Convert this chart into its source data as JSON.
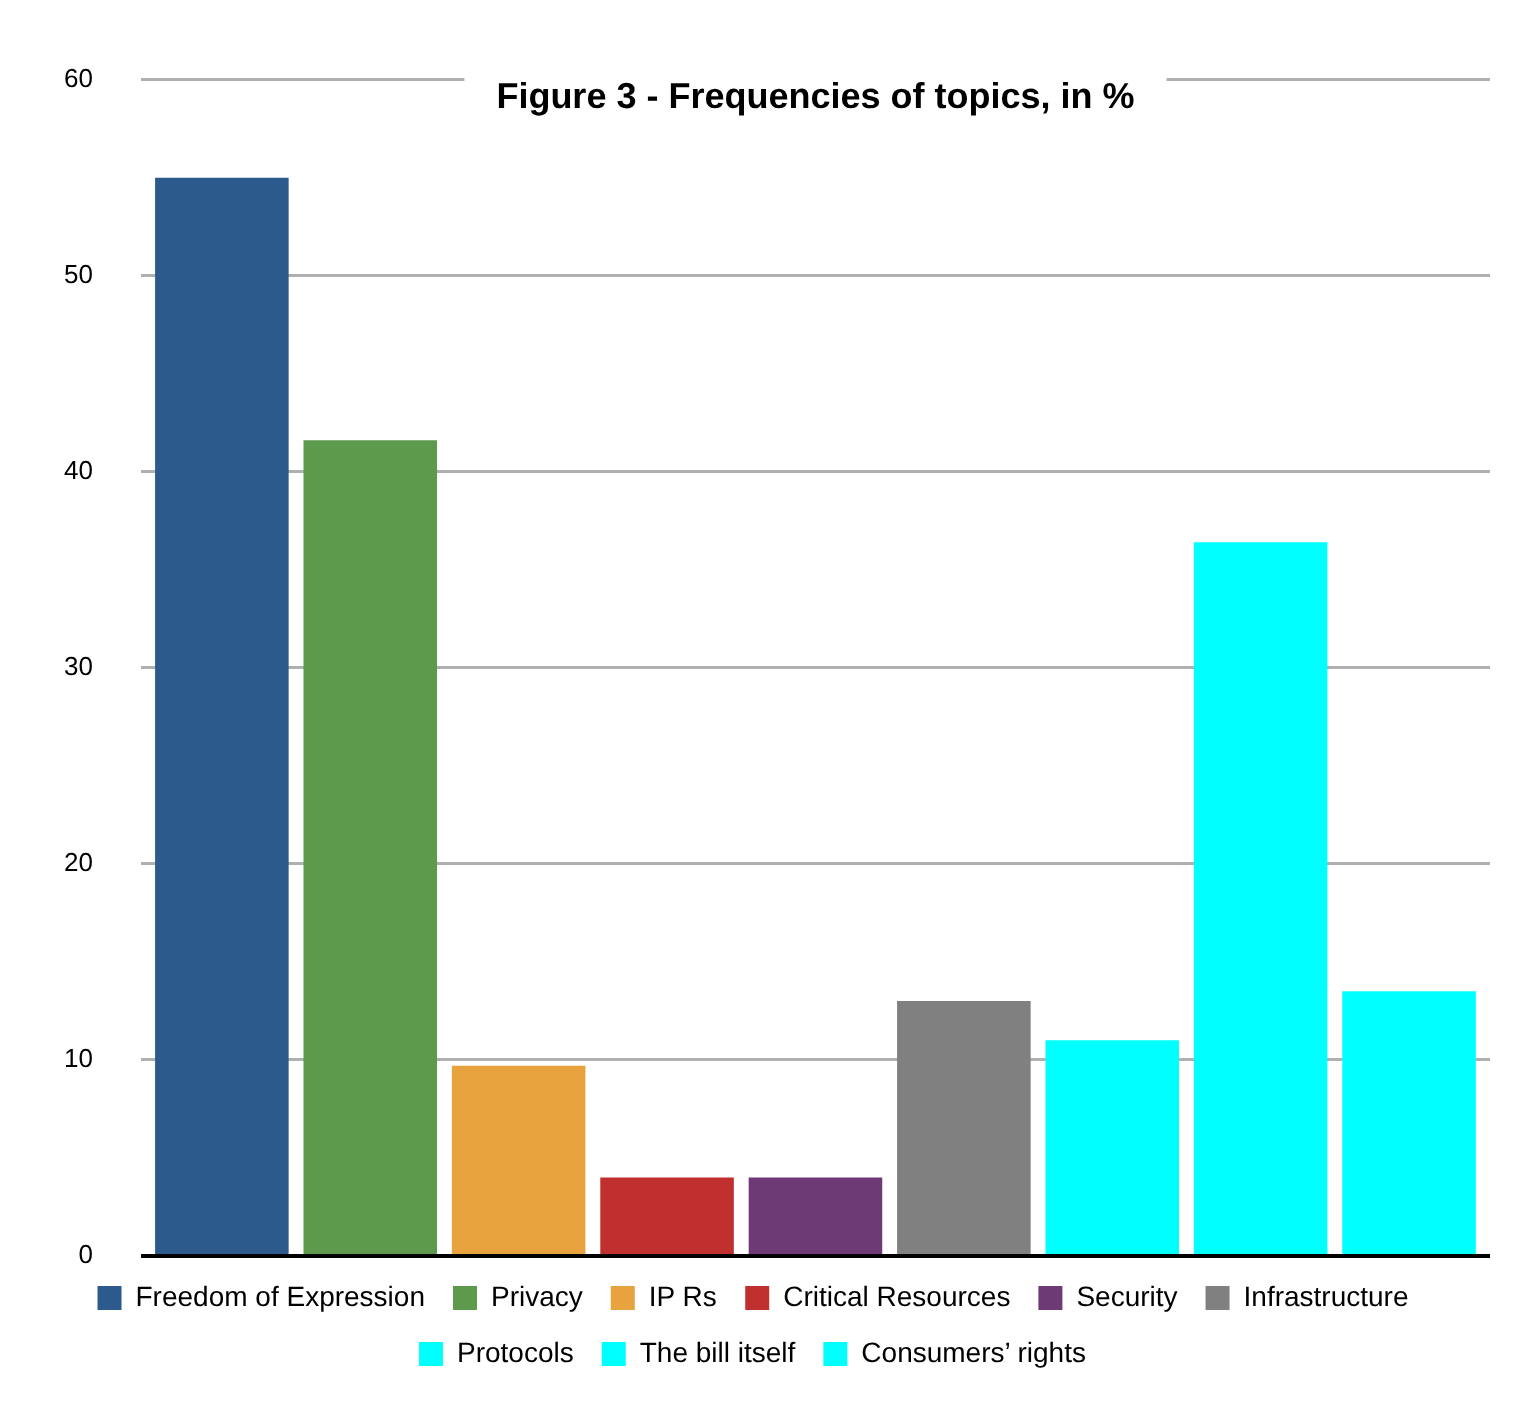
{
  "chart_data": {
    "type": "bar",
    "title": "Figure 3 - Frequencies of topics, in %",
    "categories": [
      null
    ],
    "series": [
      {
        "name": "Freedom of Expression",
        "color": "#2d5a8c",
        "values": [
          55.0
        ]
      },
      {
        "name": "Privacy",
        "color": "#5e9a4c",
        "values": [
          41.6
        ]
      },
      {
        "name": "IP Rs",
        "color": "#e8a23e",
        "values": [
          9.7
        ]
      },
      {
        "name": "Critical Resources",
        "color": "#c0302f",
        "values": [
          4.0
        ]
      },
      {
        "name": "Security",
        "color": "#6d3a76",
        "values": [
          4.0
        ]
      },
      {
        "name": "Infrastructure",
        "color": "#808080",
        "values": [
          13.0
        ]
      },
      {
        "name": "Protocols",
        "color": "#00ffff",
        "values": [
          11.0
        ]
      },
      {
        "name": "The bill itself",
        "color": "#00ffff",
        "values": [
          36.4
        ]
      },
      {
        "name": "Consumers’ rights",
        "color": "#00ffff",
        "values": [
          13.5
        ]
      }
    ],
    "ylim": [
      0,
      60
    ],
    "yticks": [
      0,
      10,
      20,
      30,
      40,
      50,
      60
    ],
    "grid": "y",
    "legend": "bottom"
  }
}
